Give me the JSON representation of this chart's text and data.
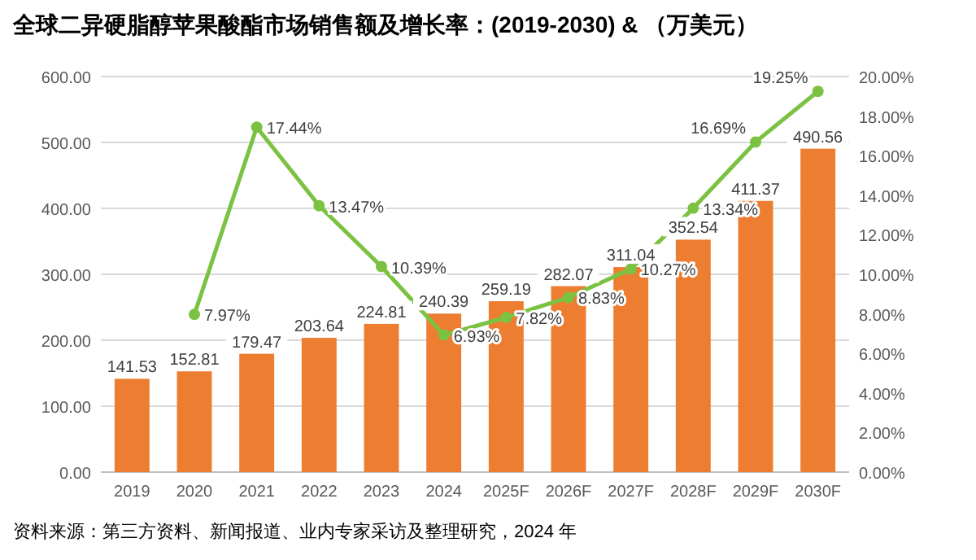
{
  "chart_data": {
    "type": "bar",
    "title": "全球二异硬脂醇苹果酸酯市场销售额及增长率：(2019-2030) & （万美元）",
    "categories": [
      "2019",
      "2020",
      "2021",
      "2022",
      "2023",
      "2024",
      "2025F",
      "2026F",
      "2027F",
      "2028F",
      "2029F",
      "2030F"
    ],
    "series": [
      {
        "color": "#ed7d31",
        "values": [
          141.53,
          152.81,
          179.47,
          203.64,
          224.81,
          240.39,
          259.19,
          282.07,
          311.04,
          352.54,
          411.37,
          490.56
        ],
        "value_labels": [
          "141.53",
          "152.81",
          "179.47",
          "203.64",
          "224.81",
          "240.39",
          "259.19",
          "282.07",
          "311.04",
          "352.54",
          "411.37",
          "490.56"
        ]
      },
      {
        "type": "line",
        "axis": "y2",
        "color": "#7cc242",
        "marker": "circle",
        "values": [
          null,
          7.97,
          17.44,
          13.47,
          10.39,
          6.93,
          7.82,
          8.83,
          10.27,
          13.34,
          16.69,
          19.25
        ],
        "value_labels": [
          null,
          "7.97%",
          "17.44%",
          "13.47%",
          "10.39%",
          "6.93%",
          "7.82%",
          "8.83%",
          "10.27%",
          "13.34%",
          "16.69%",
          "19.25%"
        ]
      }
    ],
    "ylim": [
      0,
      600
    ],
    "yticks": [
      {
        "value": 0,
        "label": "0.00"
      },
      {
        "value": 100,
        "label": "100.00"
      },
      {
        "value": 200,
        "label": "200.00"
      },
      {
        "value": 300,
        "label": "300.00"
      },
      {
        "value": 400,
        "label": "400.00"
      },
      {
        "value": 500,
        "label": "500.00"
      },
      {
        "value": 600,
        "label": "600.00"
      }
    ],
    "y2lim": [
      0,
      20
    ],
    "y2ticks": [
      {
        "value": 0,
        "label": "0.00%"
      },
      {
        "value": 2,
        "label": "2.00%"
      },
      {
        "value": 4,
        "label": "4.00%"
      },
      {
        "value": 6,
        "label": "6.00%"
      },
      {
        "value": 8,
        "label": "8.00%"
      },
      {
        "value": 10,
        "label": "10.00%"
      },
      {
        "value": 12,
        "label": "12.00%"
      },
      {
        "value": 14,
        "label": "14.00%"
      },
      {
        "value": 16,
        "label": "16.00%"
      },
      {
        "value": 18,
        "label": "18.00%"
      },
      {
        "value": 20,
        "label": "20.00%"
      }
    ],
    "grid": "y",
    "annotations": [
      "资料来源：第三方资料、新闻报道、业内专家采访及整理研究，2024 年"
    ]
  }
}
